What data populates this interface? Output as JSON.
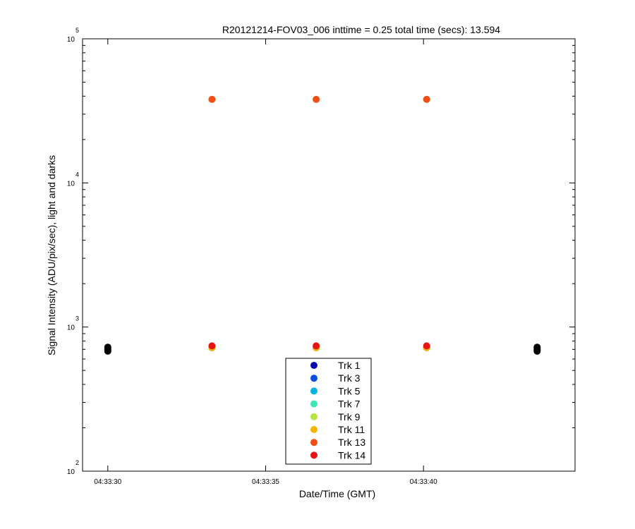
{
  "chart_data": {
    "type": "scatter",
    "title": "R20121214-FOV03_006 inttime = 0.25 total time (secs): 13.594",
    "xlabel": "Date/Time (GMT)",
    "ylabel": "Signal Intensity (ADU/pix/sec), light and darks",
    "y_scale": "log",
    "ylim": [
      100,
      100000
    ],
    "xlim": [
      "04:33:29.2",
      "04:33:44.8"
    ],
    "x_ticks": [
      "04:33:30",
      "04:33:35",
      "04:33:40"
    ],
    "y_ticks": [
      {
        "base": "10",
        "exp": "2",
        "value": 100
      },
      {
        "base": "10",
        "exp": "3",
        "value": 1000
      },
      {
        "base": "10",
        "exp": "4",
        "value": 10000
      },
      {
        "base": "10",
        "exp": "5",
        "value": 100000
      }
    ],
    "grid": false,
    "legend_position": "bottom-center",
    "series": [
      {
        "name": "Trk 1",
        "color": "#0a0ab4",
        "x": [
          "04:33:33.3",
          "04:33:36.6",
          "04:33:40.1"
        ],
        "y": [
          720,
          720,
          720
        ]
      },
      {
        "name": "Trk 3",
        "color": "#0a4ee6",
        "x": [
          "04:33:33.3",
          "04:33:36.6",
          "04:33:40.1"
        ],
        "y": [
          720,
          720,
          720
        ]
      },
      {
        "name": "Trk 5",
        "color": "#00b4e6",
        "x": [
          "04:33:33.3",
          "04:33:36.6",
          "04:33:40.1"
        ],
        "y": [
          720,
          720,
          720
        ]
      },
      {
        "name": "Trk 7",
        "color": "#3ce6b4",
        "x": [
          "04:33:33.3",
          "04:33:36.6",
          "04:33:40.1"
        ],
        "y": [
          720,
          720,
          720
        ]
      },
      {
        "name": "Trk 9",
        "color": "#b4e63c",
        "x": [
          "04:33:33.3",
          "04:33:36.6",
          "04:33:40.1"
        ],
        "y": [
          720,
          720,
          720
        ]
      },
      {
        "name": "Trk 11",
        "color": "#f5b400",
        "x": [
          "04:33:33.3",
          "04:33:36.6",
          "04:33:40.1"
        ],
        "y": [
          720,
          720,
          720
        ]
      },
      {
        "name": "Trk 13",
        "color": "#f04e14",
        "x": [
          "04:33:33.3",
          "04:33:36.6",
          "04:33:40.1"
        ],
        "y": [
          38000,
          38000,
          38000
        ]
      },
      {
        "name": "Trk 14",
        "color": "#e61414",
        "x": [
          "04:33:33.3",
          "04:33:36.6",
          "04:33:40.1"
        ],
        "y": [
          740,
          740,
          740
        ]
      }
    ],
    "darks": {
      "color": "#000000",
      "x": [
        "04:33:30.0",
        "04:33:30.0",
        "04:33:30.0",
        "04:33:30.0",
        "04:33:43.6",
        "04:33:43.6",
        "04:33:43.6",
        "04:33:43.6"
      ],
      "y": [
        680,
        695,
        710,
        725,
        680,
        695,
        710,
        725
      ]
    }
  }
}
